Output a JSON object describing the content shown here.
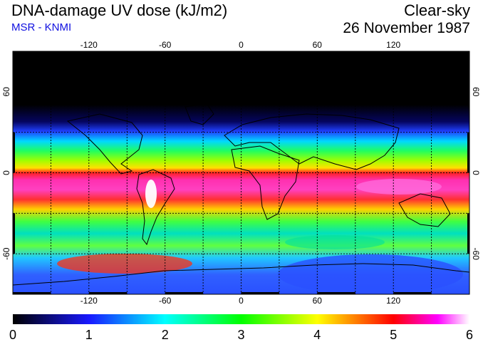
{
  "header": {
    "title": "DNA-damage UV dose (kJ/m2)",
    "subtitle": "MSR - KNMI",
    "condition": "Clear-sky",
    "date": "26 November 1987"
  },
  "map": {
    "lon_range": [
      -180,
      180
    ],
    "lat_range": [
      -90,
      90
    ],
    "grid_spacing_deg": 30,
    "lon_tick_labels": [
      "-120",
      "-60",
      "0",
      "60",
      "120"
    ],
    "lat_tick_labels": [
      "60",
      "0",
      "-60"
    ],
    "colors": {
      "background_top": "#000000",
      "grid": "#000000"
    }
  },
  "colorbar": {
    "min": 0,
    "max": 6,
    "tick_labels": [
      "0",
      "1",
      "2",
      "3",
      "4",
      "5",
      "6"
    ],
    "stops": [
      "#000000",
      "#1818ff",
      "#00ffff",
      "#00ff00",
      "#ffff00",
      "#ff0000",
      "#ff00ff",
      "#ffffff"
    ]
  }
}
